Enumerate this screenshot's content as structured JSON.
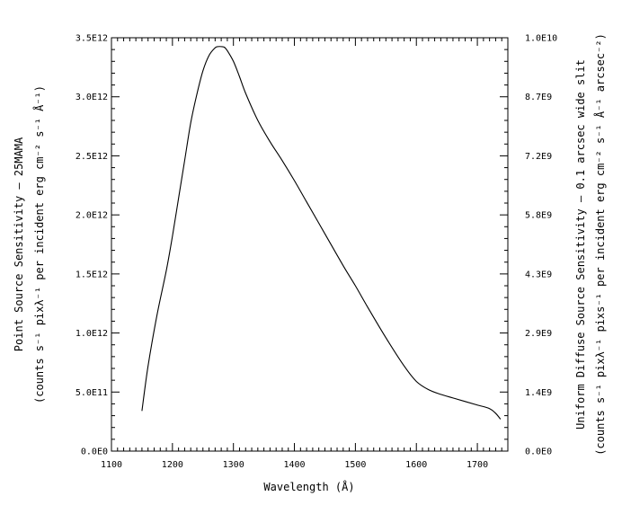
{
  "chart_data": {
    "type": "line",
    "xlabel": "Wavelength (Å)",
    "ylabel_left_line1": "Point Source Sensitivity – 25MAMA",
    "ylabel_left_line2": "(counts s⁻¹ pixλ⁻¹ per incident erg cm⁻² s⁻¹ Å⁻¹)",
    "ylabel_right_line1": "Uniform Diffuse Source Sensitivity – 0.1 arcsec wide slit",
    "ylabel_right_line2": "(counts s⁻¹ pixλ⁻¹ pixs⁻¹ per incident erg cm⁻² s⁻¹ Å⁻¹ arcsec⁻²)",
    "xlim": [
      1100,
      1750
    ],
    "ylim": [
      0,
      3500000000000.0
    ],
    "x_ticks": [
      1100,
      1200,
      1300,
      1400,
      1500,
      1600,
      1700
    ],
    "x_tick_labels": [
      "1100",
      "1200",
      "1300",
      "1400",
      "1500",
      "1600",
      "1700"
    ],
    "y_left_ticks": [
      0,
      500000000000.0,
      1000000000000.0,
      1500000000000.0,
      2000000000000.0,
      2500000000000.0,
      3000000000000.0,
      3500000000000.0
    ],
    "y_left_tick_labels": [
      "0.0E0",
      "5.0E11",
      "1.0E12",
      "1.5E12",
      "2.0E12",
      "2.5E12",
      "3.0E12",
      "3.5E12"
    ],
    "y_right_tick_labels": [
      "0.0E0",
      "1.4E9",
      "2.9E9",
      "4.3E9",
      "5.8E9",
      "7.2E9",
      "8.7E9",
      "1.0E10"
    ],
    "series": [
      {
        "x": [
          1150,
          1160,
          1175,
          1190,
          1200,
          1210,
          1220,
          1230,
          1240,
          1250,
          1260,
          1270,
          1275,
          1280,
          1285,
          1290,
          1300,
          1310,
          1320,
          1340,
          1360,
          1380,
          1400,
          1420,
          1450,
          1480,
          1500,
          1520,
          1550,
          1580,
          1600,
          1620,
          1640,
          1660,
          1680,
          1700,
          1720,
          1730,
          1738
        ],
        "y": [
          340000000000.0,
          720000000000.0,
          1160000000000.0,
          1530000000000.0,
          1820000000000.0,
          2140000000000.0,
          2460000000000.0,
          2780000000000.0,
          3020000000000.0,
          3220000000000.0,
          3350000000000.0,
          3415000000000.0,
          3425000000000.0,
          3425000000000.0,
          3420000000000.0,
          3390000000000.0,
          3300000000000.0,
          3170000000000.0,
          3030000000000.0,
          2800000000000.0,
          2620000000000.0,
          2460000000000.0,
          2290000000000.0,
          2110000000000.0,
          1840000000000.0,
          1570000000000.0,
          1400000000000.0,
          1220000000000.0,
          960000000000.0,
          720000000000.0,
          590000000000.0,
          520000000000.0,
          480000000000.0,
          450000000000.0,
          420000000000.0,
          390000000000.0,
          360000000000.0,
          320000000000.0,
          270000000000.0
        ]
      }
    ],
    "grid": false,
    "legend": "none"
  }
}
